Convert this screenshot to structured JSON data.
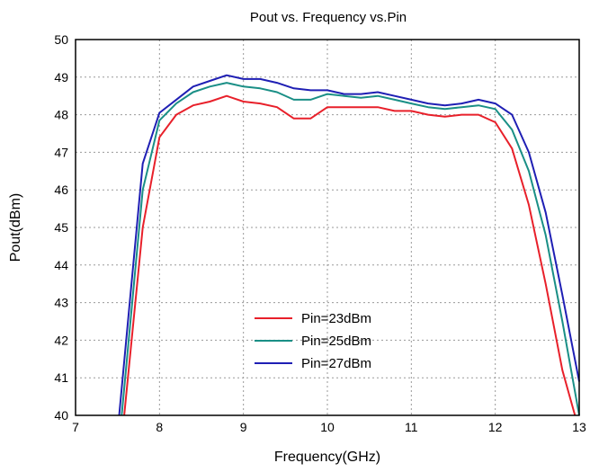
{
  "chart_data": {
    "type": "line",
    "title": "Pout vs. Frequency vs.Pin",
    "xlabel": "Frequency(GHz)",
    "ylabel": "Pout(dBm)",
    "xlim": [
      7,
      13
    ],
    "ylim": [
      40,
      50
    ],
    "xticks": [
      7,
      8,
      9,
      10,
      11,
      12,
      13
    ],
    "yticks": [
      40,
      41,
      42,
      43,
      44,
      45,
      46,
      47,
      48,
      49,
      50
    ],
    "grid": true,
    "legend_position": "bottom-center",
    "series": [
      {
        "name": "Pin=23dBm",
        "color": "#e8202a",
        "x": [
          7.58,
          7.8,
          8.0,
          8.2,
          8.4,
          8.6,
          8.8,
          9.0,
          9.2,
          9.4,
          9.6,
          9.8,
          10.0,
          10.2,
          10.4,
          10.6,
          10.8,
          11.0,
          11.2,
          11.4,
          11.6,
          11.8,
          12.0,
          12.2,
          12.4,
          12.6,
          12.8,
          12.95
        ],
        "y": [
          40.0,
          45.0,
          47.4,
          48.0,
          48.25,
          48.35,
          48.5,
          48.35,
          48.3,
          48.2,
          47.9,
          47.9,
          48.2,
          48.2,
          48.2,
          48.2,
          48.1,
          48.1,
          48.0,
          47.95,
          48.0,
          48.0,
          47.8,
          47.1,
          45.6,
          43.5,
          41.2,
          40.0
        ]
      },
      {
        "name": "Pin=25dBm",
        "color": "#1a8f86",
        "x": [
          7.55,
          7.8,
          8.0,
          8.2,
          8.4,
          8.6,
          8.8,
          9.0,
          9.2,
          9.4,
          9.6,
          9.8,
          10.0,
          10.2,
          10.4,
          10.6,
          10.8,
          11.0,
          11.2,
          11.4,
          11.6,
          11.8,
          12.0,
          12.2,
          12.4,
          12.6,
          12.8,
          13.0
        ],
        "y": [
          40.0,
          46.0,
          47.85,
          48.3,
          48.6,
          48.75,
          48.85,
          48.75,
          48.7,
          48.6,
          48.4,
          48.4,
          48.55,
          48.5,
          48.45,
          48.5,
          48.4,
          48.3,
          48.2,
          48.15,
          48.2,
          48.25,
          48.15,
          47.6,
          46.5,
          44.8,
          42.5,
          40.0
        ]
      },
      {
        "name": "Pin=27dBm",
        "color": "#1f1fb4",
        "x": [
          7.52,
          7.8,
          8.0,
          8.2,
          8.4,
          8.6,
          8.8,
          9.0,
          9.2,
          9.4,
          9.6,
          9.8,
          10.0,
          10.2,
          10.4,
          10.6,
          10.8,
          11.0,
          11.2,
          11.4,
          11.6,
          11.8,
          12.0,
          12.2,
          12.4,
          12.6,
          12.8,
          13.0
        ],
        "y": [
          40.0,
          46.7,
          48.05,
          48.4,
          48.75,
          48.9,
          49.05,
          48.95,
          48.95,
          48.85,
          48.7,
          48.65,
          48.65,
          48.55,
          48.55,
          48.6,
          48.5,
          48.4,
          48.3,
          48.25,
          48.3,
          48.4,
          48.3,
          48.0,
          47.0,
          45.4,
          43.2,
          40.9
        ]
      }
    ]
  }
}
